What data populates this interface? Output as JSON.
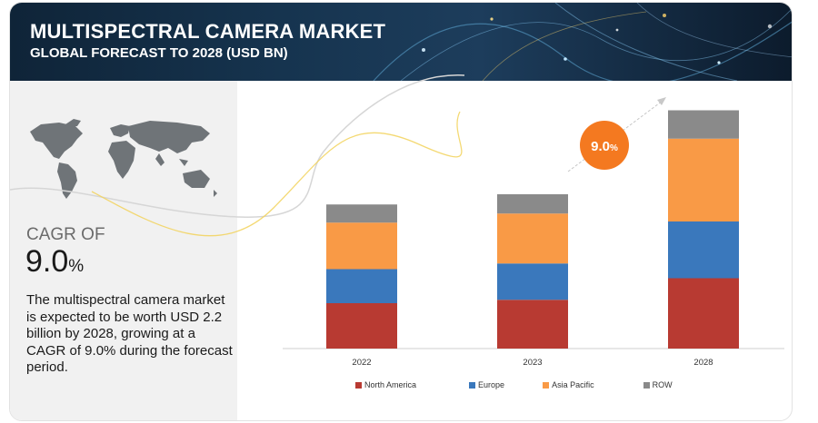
{
  "header": {
    "title": "MULTISPECTRAL CAMERA MARKET",
    "subtitle": "GLOBAL FORECAST TO 2028 (USD BN)"
  },
  "summary": {
    "cagr_label": "CAGR OF",
    "cagr_number": "9.0",
    "cagr_unit": "%",
    "description": "The multispectral camera market is expected to be worth USD 2.2 billion by 2028, growing at a CAGR of 9.0% during the forecast period."
  },
  "badge": {
    "number": "9.0",
    "unit": "%"
  },
  "colors": {
    "north_america": "#b83a32",
    "europe": "#3a78bc",
    "asia_pacific": "#f99a46",
    "row": "#8a8a8a",
    "badge": "#f47920"
  },
  "icons": [
    "world-map-icon",
    "growth-arrow-icon"
  ],
  "chart_data": {
    "type": "bar",
    "stacked": true,
    "categories": [
      "2022",
      "2023",
      "2028"
    ],
    "series": [
      {
        "name": "North America",
        "values": [
          0.4,
          0.43,
          0.62
        ],
        "color": "#b83a32"
      },
      {
        "name": "Europe",
        "values": [
          0.3,
          0.32,
          0.5
        ],
        "color": "#3a78bc"
      },
      {
        "name": "Asia Pacific",
        "values": [
          0.41,
          0.44,
          0.73
        ],
        "color": "#f99a46"
      },
      {
        "name": "ROW",
        "values": [
          0.16,
          0.17,
          0.25
        ],
        "color": "#8a8a8a"
      }
    ],
    "ylim": [
      0,
      2.2
    ],
    "grid": false,
    "legend_position": "bottom"
  }
}
